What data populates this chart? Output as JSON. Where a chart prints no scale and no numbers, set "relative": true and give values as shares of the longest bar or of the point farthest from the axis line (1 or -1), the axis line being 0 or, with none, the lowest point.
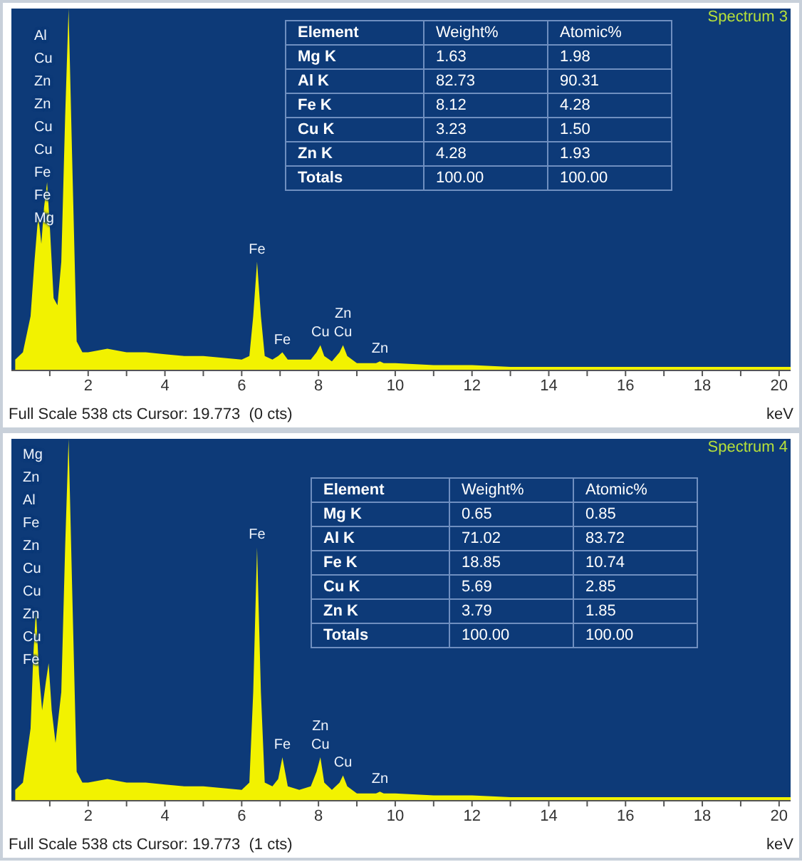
{
  "chart_data": [
    {
      "type": "area",
      "title": "Spectrum 3",
      "xlabel": "keV",
      "relative": true,
      "xlim": [
        0,
        20.3
      ],
      "xticks": [
        {
          "value": 1,
          "label": null
        },
        2,
        {
          "value": 3,
          "label": null
        },
        4,
        {
          "value": 5,
          "label": null
        },
        6,
        {
          "value": 7,
          "label": null
        },
        8,
        {
          "value": 9,
          "label": null
        },
        10,
        {
          "value": 11,
          "label": null
        },
        12,
        {
          "value": 13,
          "label": null
        },
        14,
        {
          "value": 15,
          "label": null
        },
        16,
        {
          "value": 17,
          "label": null
        },
        18,
        {
          "value": 19,
          "label": null
        },
        20
      ],
      "series": [
        {
          "color": "#f2f200",
          "x": [
            0.1,
            0.3,
            0.5,
            0.6,
            0.7,
            0.78,
            0.85,
            0.93,
            1.0,
            1.1,
            1.2,
            1.3,
            1.4,
            1.49,
            1.58,
            1.7,
            1.85,
            2.0,
            2.5,
            3,
            3.5,
            4,
            4.5,
            5,
            5.5,
            6,
            6.2,
            6.3,
            6.4,
            6.5,
            6.6,
            6.8,
            6.95,
            7.06,
            7.2,
            7.5,
            7.8,
            7.95,
            8.05,
            8.15,
            8.35,
            8.55,
            8.64,
            8.75,
            9,
            9.5,
            9.6,
            9.7,
            10,
            11,
            12,
            13,
            14,
            15,
            16,
            17,
            18,
            19,
            20,
            20.3
          ],
          "values": [
            0.03,
            0.05,
            0.15,
            0.3,
            0.43,
            0.35,
            0.45,
            0.52,
            0.4,
            0.2,
            0.18,
            0.3,
            0.7,
            1,
            0.6,
            0.08,
            0.05,
            0.05,
            0.06,
            0.05,
            0.05,
            0.045,
            0.04,
            0.04,
            0.035,
            0.03,
            0.04,
            0.15,
            0.3,
            0.15,
            0.04,
            0.03,
            0.04,
            0.05,
            0.03,
            0.03,
            0.03,
            0.05,
            0.07,
            0.04,
            0.025,
            0.05,
            0.07,
            0.04,
            0.02,
            0.02,
            0.025,
            0.02,
            0.02,
            0.015,
            0.015,
            0.01,
            0.01,
            0.01,
            0.01,
            0.01,
            0.01,
            0.01,
            0.01,
            0.01
          ]
        }
      ],
      "annotations": [
        "Full Scale 538 cts Cursor: 19.773  (0 cts)",
        "Al",
        "Cu",
        "Zn",
        "Zn",
        "Cu",
        "Cu",
        "Fe",
        "Fe",
        "Mg",
        {
          "text": "Fe",
          "x": 6.4,
          "y": 0.3
        },
        {
          "text": "Fe",
          "x": 7.06,
          "y": 0.05
        },
        {
          "text": "Cu",
          "x": 8.05,
          "y": 0.07
        },
        {
          "text": "Cu",
          "x": 8.64,
          "y": 0.07
        },
        {
          "text": "Zn",
          "x": 8.64,
          "y": 0.07
        },
        {
          "text": "Zn",
          "x": 9.6,
          "y": 0.025
        }
      ]
    },
    {
      "type": "other",
      "xlabel": "Element",
      "categories": [
        "Mg K",
        "Al K",
        "Fe K",
        "Cu K",
        "Zn K",
        "Totals"
      ],
      "series": [
        {
          "name": "Weight%",
          "values": [
            1.63,
            82.73,
            8.12,
            3.23,
            4.28,
            100.0
          ],
          "value_labels": [
            "1.63",
            "82.73",
            "8.12",
            "3.23",
            "4.28",
            "100.00"
          ]
        },
        {
          "name": "Atomic%",
          "values": [
            1.98,
            90.31,
            4.28,
            1.5,
            1.93,
            100.0
          ],
          "value_labels": [
            "1.98",
            "90.31",
            "4.28",
            "1.50",
            "1.93",
            "100.00"
          ]
        }
      ]
    },
    {
      "type": "area",
      "title": "Spectrum 4",
      "xlabel": "keV",
      "relative": true,
      "xlim": [
        0,
        20.3
      ],
      "xticks": [
        {
          "value": 1,
          "label": null
        },
        2,
        {
          "value": 3,
          "label": null
        },
        4,
        {
          "value": 5,
          "label": null
        },
        6,
        {
          "value": 7,
          "label": null
        },
        8,
        {
          "value": 9,
          "label": null
        },
        10,
        {
          "value": 11,
          "label": null
        },
        12,
        {
          "value": 13,
          "label": null
        },
        14,
        {
          "value": 15,
          "label": null
        },
        16,
        {
          "value": 17,
          "label": null
        },
        18,
        {
          "value": 19,
          "label": null
        },
        20
      ],
      "series": [
        {
          "color": "#f2f200",
          "x": [
            0.1,
            0.3,
            0.5,
            0.57,
            0.64,
            0.72,
            0.8,
            0.9,
            0.97,
            1.05,
            1.15,
            1.3,
            1.4,
            1.49,
            1.58,
            1.7,
            1.85,
            2.0,
            2.5,
            3,
            3.5,
            4,
            4.5,
            5,
            5.5,
            6,
            6.2,
            6.3,
            6.4,
            6.5,
            6.6,
            6.8,
            6.95,
            7.06,
            7.2,
            7.5,
            7.8,
            7.95,
            8.05,
            8.15,
            8.35,
            8.55,
            8.64,
            8.75,
            9,
            9.5,
            9.6,
            9.7,
            10,
            11,
            12,
            13,
            14,
            15,
            16,
            17,
            18,
            19,
            20,
            20.3
          ],
          "values": [
            0.03,
            0.05,
            0.2,
            0.4,
            0.53,
            0.35,
            0.25,
            0.33,
            0.38,
            0.25,
            0.16,
            0.3,
            0.7,
            1,
            0.6,
            0.08,
            0.05,
            0.05,
            0.06,
            0.05,
            0.05,
            0.045,
            0.04,
            0.04,
            0.035,
            0.03,
            0.05,
            0.3,
            0.7,
            0.3,
            0.05,
            0.04,
            0.06,
            0.12,
            0.04,
            0.03,
            0.04,
            0.08,
            0.12,
            0.05,
            0.03,
            0.05,
            0.07,
            0.04,
            0.02,
            0.02,
            0.025,
            0.02,
            0.02,
            0.015,
            0.015,
            0.01,
            0.01,
            0.01,
            0.01,
            0.01,
            0.01,
            0.01,
            0.01,
            0.01
          ]
        }
      ],
      "annotations": [
        "Full Scale 538 cts Cursor: 19.773  (1 cts)",
        "Mg",
        "Zn",
        "Al",
        "Fe",
        "Zn",
        "Cu",
        "Cu",
        "Zn",
        "Cu",
        "Fe",
        {
          "text": "Fe",
          "x": 6.4,
          "y": 0.7
        },
        {
          "text": "Fe",
          "x": 7.06,
          "y": 0.12
        },
        {
          "text": "Cu",
          "x": 8.05,
          "y": 0.12
        },
        {
          "text": "Zn",
          "x": 8.05,
          "y": 0.12
        },
        {
          "text": "Cu",
          "x": 8.64,
          "y": 0.07
        },
        {
          "text": "Zn",
          "x": 9.6,
          "y": 0.025
        }
      ]
    },
    {
      "type": "other",
      "xlabel": "Element",
      "categories": [
        "Mg K",
        "Al K",
        "Fe K",
        "Cu K",
        "Zn K",
        "Totals"
      ],
      "series": [
        {
          "name": "Weight%",
          "values": [
            0.65,
            71.02,
            18.85,
            5.69,
            3.79,
            100.0
          ],
          "value_labels": [
            "0.65",
            "71.02",
            "18.85",
            "5.69",
            "3.79",
            "100.00"
          ]
        },
        {
          "name": "Atomic%",
          "values": [
            0.85,
            83.72,
            10.74,
            2.85,
            1.85,
            100.0
          ],
          "value_labels": [
            "0.85",
            "83.72",
            "10.74",
            "2.85",
            "1.85",
            "100.00"
          ]
        }
      ]
    }
  ]
}
